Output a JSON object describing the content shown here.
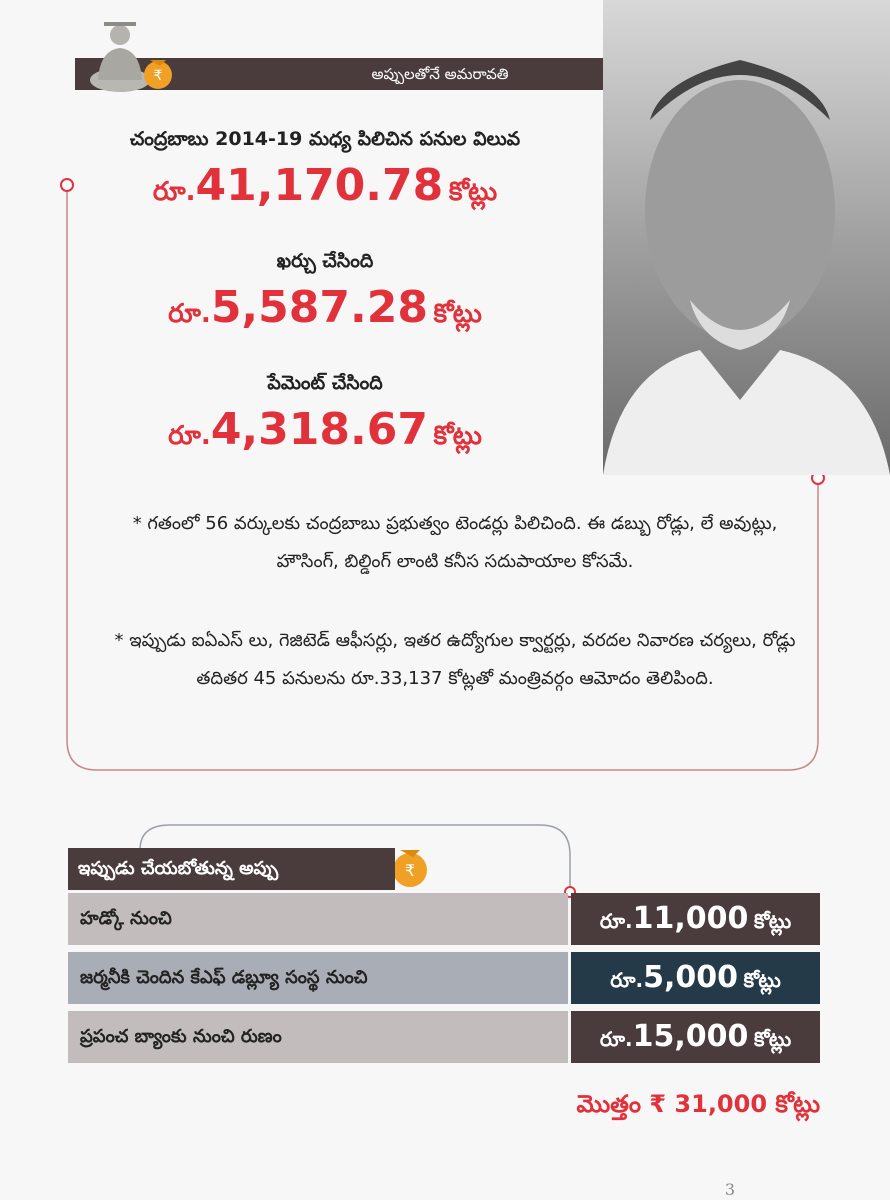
{
  "header": {
    "title": "అప్పులతోనే అమరావతి"
  },
  "stats": [
    {
      "label": "చంద్రబాబు 2014-19 మధ్య పిలిచిన పనుల విలువ",
      "prefix": "రూ.",
      "amount": "41,170.78",
      "unit": "కోట్లు"
    },
    {
      "label": "ఖర్చు చేసింది",
      "prefix": "రూ.",
      "amount": "5,587.28",
      "unit": "కోట్లు"
    },
    {
      "label": "పేమెంట్ చేసింది",
      "prefix": "రూ.",
      "amount": "4,318.67",
      "unit": "కోట్లు"
    }
  ],
  "notes": [
    "* గతంలో 56 వర్కులకు చంద్రబాబు ప్రభుత్వం టెండర్లు పిలిచింది. ఈ డబ్బు రోడ్లు, లే అవుట్లు, హౌసింగ్, బిల్డింగ్ లాంటి కనీస సదుపాయాల కోసమే.",
    "* ఇప్పుడు ఐఏఎస్ లు, గెజిటెడ్ ఆఫీసర్లు, ఇతర ఉద్యోగుల క్వార్టర్లు, వరదల నివారణ చర్యలు, రోడ్లు తదితర 45 పనులను రూ.33,137 కోట్లతో మంత్రివర్గం ఆమోదం తెలిపింది."
  ],
  "table": {
    "title": "ఇప్పుడు చేయబోతున్న అప్పు",
    "rows": [
      {
        "source": "హడ్కో నుంచి",
        "prefix": "రూ.",
        "amount": "11,000",
        "unit": "కోట్లు"
      },
      {
        "source": "జర్మనీకి చెందిన కేఎఫ్ డబ్ల్యూ సంస్థ నుంచి",
        "prefix": "రూ.",
        "amount": "5,000",
        "unit": "కోట్లు"
      },
      {
        "source": "ప్రపంచ బ్యాంకు నుంచి రుణం",
        "prefix": "రూ.",
        "amount": "15,000",
        "unit": "కోట్లు"
      }
    ],
    "total": "మొత్తం ₹ 31,000 కోట్లు"
  },
  "page_number": "3"
}
